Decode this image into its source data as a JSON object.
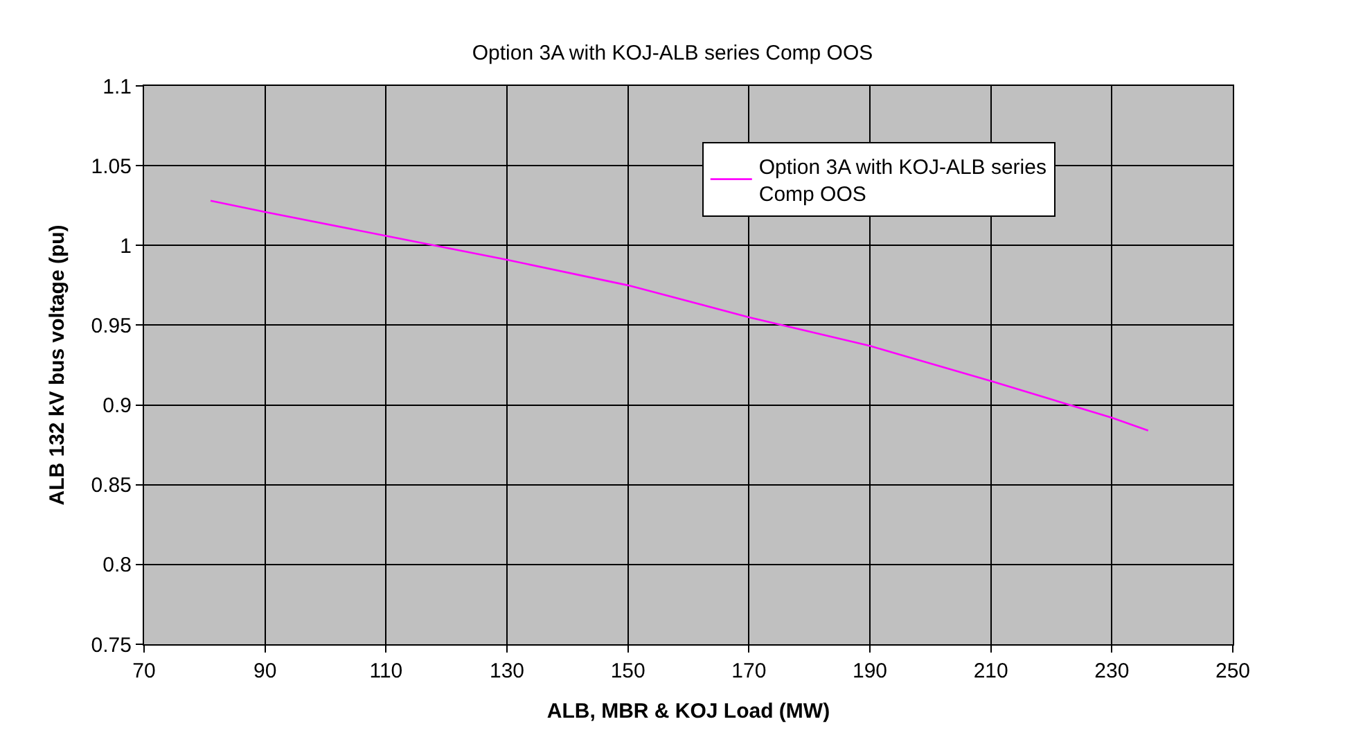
{
  "chart_data": {
    "type": "line",
    "title": "Option 3A with KOJ-ALB series Comp OOS",
    "xlabel": "ALB, MBR & KOJ Load (MW)",
    "ylabel": "ALB 132 kV bus voltage (pu)",
    "x": [
      81,
      90,
      110,
      130,
      150,
      170,
      190,
      210,
      230,
      236
    ],
    "series": [
      {
        "name": "Option 3A with KOJ-ALB series\nComp OOS",
        "color": "#ff00ff",
        "values": [
          1.028,
          1.021,
          1.006,
          0.991,
          0.975,
          0.955,
          0.937,
          0.915,
          0.892,
          0.884
        ]
      }
    ],
    "xlim": [
      70,
      250
    ],
    "xticks": [
      70,
      90,
      110,
      130,
      150,
      170,
      190,
      210,
      230,
      250
    ],
    "ylim": [
      0.75,
      1.1
    ],
    "yticks": [
      0.75,
      0.8,
      0.85,
      0.9,
      0.95,
      1,
      1.05,
      1.1
    ],
    "grid": true,
    "legend": "top right",
    "marker": "none",
    "line_style": "solid"
  }
}
